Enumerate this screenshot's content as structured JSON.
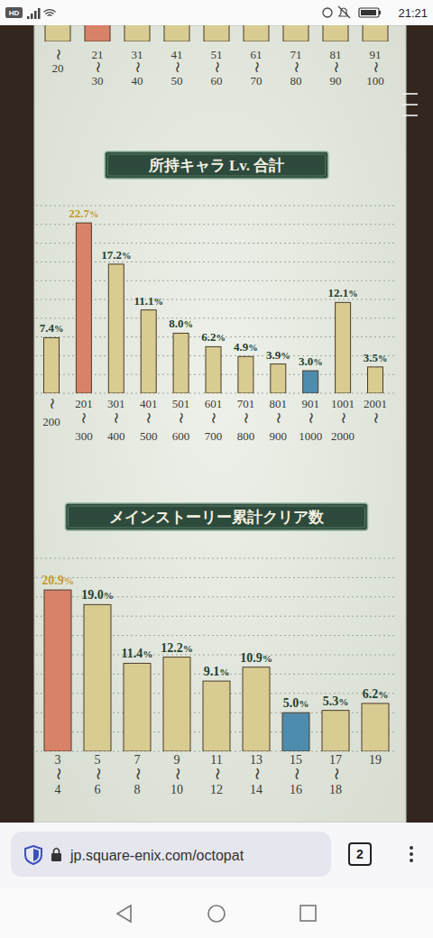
{
  "status_bar": {
    "badge": "HD",
    "time": "21:21"
  },
  "browser": {
    "url": "jp.square-enix.com/octopat",
    "tab_count": 2
  },
  "chart_data": [
    {
      "type": "bar",
      "categories": [
        "〜20",
        "21〜30",
        "31〜40",
        "41〜50",
        "51〜60",
        "61〜70",
        "71〜80",
        "81〜90",
        "91〜100"
      ],
      "colors": [
        "#d8cc92",
        "#d9826a",
        "#d8cc92",
        "#d8cc92",
        "#d8cc92",
        "#d8cc92",
        "#d8cc92",
        "#d8cc92",
        "#d8cc92"
      ],
      "tick_labels": "x"
    },
    {
      "type": "bar",
      "title": "所持キャラ Lv. 合計",
      "categories": [
        "〜200",
        "201〜300",
        "301〜400",
        "401〜500",
        "501〜600",
        "601〜700",
        "701〜800",
        "801〜900",
        "901〜1000",
        "1001〜2000",
        "2001〜"
      ],
      "values": [
        7.4,
        22.7,
        17.2,
        11.1,
        8.0,
        6.2,
        4.9,
        3.9,
        3.0,
        12.1,
        3.5
      ],
      "value_labels": [
        "7.4%",
        "22.7%",
        "17.2%",
        "11.1%",
        "8.0%",
        "6.2%",
        "4.9%",
        "3.9%",
        "3.0%",
        "12.1%",
        "3.5%"
      ],
      "colors": [
        "#d8cc92",
        "#d9826a",
        "#d8cc92",
        "#d8cc92",
        "#d8cc92",
        "#d8cc92",
        "#d8cc92",
        "#d8cc92",
        "#4e8cae",
        "#d8cc92",
        "#d8cc92"
      ],
      "ylim": [
        0,
        25
      ],
      "yticks": [
        0,
        2.5,
        5,
        7.5,
        10,
        12.5,
        15,
        17.5,
        20,
        22.5,
        25
      ],
      "grid": true,
      "data_labels": true,
      "tick_labels": "x"
    },
    {
      "type": "bar",
      "title": "メインストーリー累計クリア数",
      "categories": [
        "3〜4",
        "5〜6",
        "7〜8",
        "9〜10",
        "11〜12",
        "13〜14",
        "15〜16",
        "17〜18",
        "19"
      ],
      "values": [
        20.9,
        19.0,
        11.4,
        12.2,
        9.1,
        10.9,
        5.0,
        5.3,
        6.2
      ],
      "value_labels": [
        "20.9%",
        "19.0%",
        "11.4%",
        "12.2%",
        "9.1%",
        "10.9%",
        "5.0%",
        "5.3%",
        "6.2%"
      ],
      "colors": [
        "#d9826a",
        "#d8cc92",
        "#d8cc92",
        "#d8cc92",
        "#d8cc92",
        "#d8cc92",
        "#4e8cae",
        "#d8cc92",
        "#d8cc92"
      ],
      "ylim": [
        0,
        25
      ],
      "yticks": [
        0,
        2.5,
        5,
        7.5,
        10,
        12.5,
        15,
        17.5,
        20,
        22.5,
        25
      ],
      "grid": true,
      "data_labels": true,
      "tick_labels": "x"
    }
  ]
}
